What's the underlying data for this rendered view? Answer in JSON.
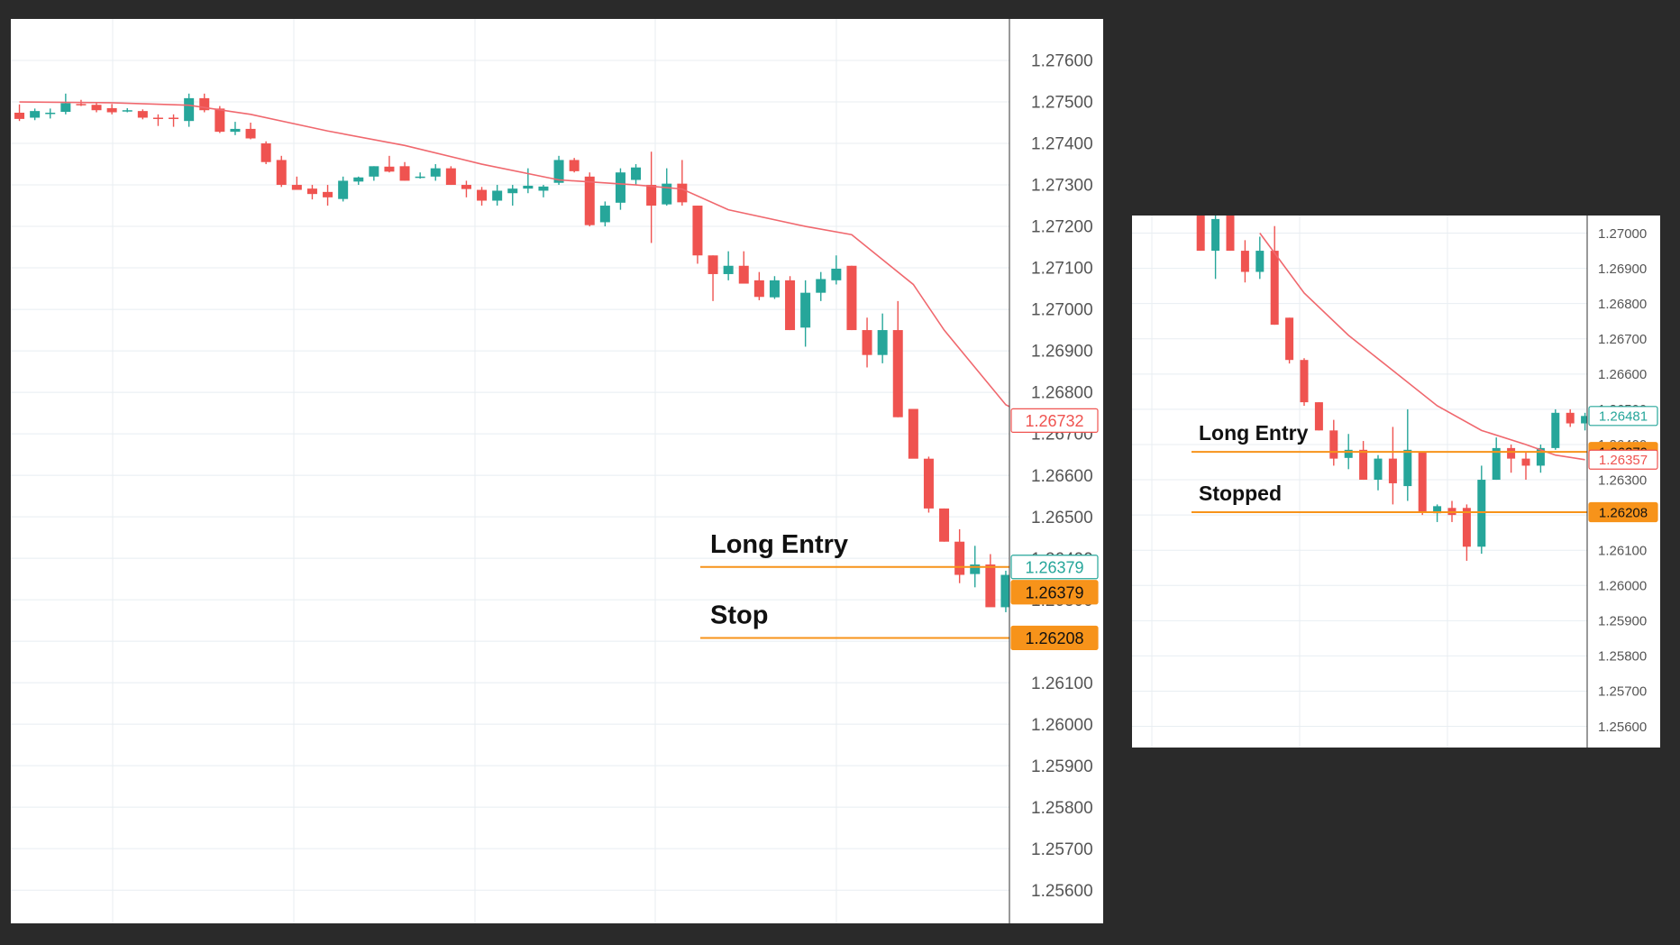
{
  "colors": {
    "bull": "#26a69a",
    "bear": "#ef5350",
    "ma": "#f0686e",
    "level": "#f7931a",
    "grid": "#e8eef2",
    "axis_text": "#555555",
    "panel_bg": "#ffffff",
    "page_bg": "#2a2a2a"
  },
  "chart_data": [
    {
      "type": "candlestick",
      "y_axis": {
        "ticks": [
          "1.27600",
          "1.27500",
          "1.27400",
          "1.27300",
          "1.27200",
          "1.27100",
          "1.27000",
          "1.26900",
          "1.26800",
          "1.26700",
          "1.26600",
          "1.26500",
          "1.26400",
          "1.26300",
          "1.26200",
          "1.26100",
          "1.26000",
          "1.25900",
          "1.25800",
          "1.25700",
          "1.25600"
        ],
        "ylim": [
          1.2552,
          1.277
        ]
      },
      "candles": [
        {
          "o": 1.27474,
          "h": 1.27494,
          "l": 1.27454,
          "c": 1.27459
        },
        {
          "o": 1.27462,
          "h": 1.27484,
          "l": 1.27456,
          "c": 1.27478
        },
        {
          "o": 1.27474,
          "h": 1.27484,
          "l": 1.2746,
          "c": 1.27474
        },
        {
          "o": 1.27476,
          "h": 1.2752,
          "l": 1.2747,
          "c": 1.27497
        },
        {
          "o": 1.27495,
          "h": 1.27505,
          "l": 1.2749,
          "c": 1.27493
        },
        {
          "o": 1.27493,
          "h": 1.275,
          "l": 1.27475,
          "c": 1.2748
        },
        {
          "o": 1.27485,
          "h": 1.27495,
          "l": 1.2747,
          "c": 1.27475
        },
        {
          "o": 1.2748,
          "h": 1.27485,
          "l": 1.27475,
          "c": 1.2748
        },
        {
          "o": 1.27478,
          "h": 1.27482,
          "l": 1.27458,
          "c": 1.27462
        },
        {
          "o": 1.27462,
          "h": 1.2747,
          "l": 1.27442,
          "c": 1.27461
        },
        {
          "o": 1.27462,
          "h": 1.2747,
          "l": 1.2744,
          "c": 1.27459
        },
        {
          "o": 1.27454,
          "h": 1.2752,
          "l": 1.2744,
          "c": 1.27509
        },
        {
          "o": 1.27509,
          "h": 1.2752,
          "l": 1.27475,
          "c": 1.2748
        },
        {
          "o": 1.27484,
          "h": 1.2749,
          "l": 1.27425,
          "c": 1.27428
        },
        {
          "o": 1.27428,
          "h": 1.27452,
          "l": 1.2742,
          "c": 1.27435
        },
        {
          "o": 1.27435,
          "h": 1.2745,
          "l": 1.2741,
          "c": 1.27412
        },
        {
          "o": 1.274,
          "h": 1.27405,
          "l": 1.2735,
          "c": 1.27355
        },
        {
          "o": 1.2736,
          "h": 1.2737,
          "l": 1.27295,
          "c": 1.273
        },
        {
          "o": 1.273,
          "h": 1.2732,
          "l": 1.2729,
          "c": 1.27288
        },
        {
          "o": 1.27291,
          "h": 1.273,
          "l": 1.27265,
          "c": 1.27278
        },
        {
          "o": 1.27283,
          "h": 1.273,
          "l": 1.2725,
          "c": 1.2727
        },
        {
          "o": 1.27266,
          "h": 1.2732,
          "l": 1.2726,
          "c": 1.2731
        },
        {
          "o": 1.27308,
          "h": 1.2732,
          "l": 1.273,
          "c": 1.27318
        },
        {
          "o": 1.2732,
          "h": 1.27345,
          "l": 1.2731,
          "c": 1.27345
        },
        {
          "o": 1.27344,
          "h": 1.2737,
          "l": 1.2733,
          "c": 1.27332
        },
        {
          "o": 1.27345,
          "h": 1.27355,
          "l": 1.2731,
          "c": 1.2731
        },
        {
          "o": 1.2732,
          "h": 1.2733,
          "l": 1.27315,
          "c": 1.2732
        },
        {
          "o": 1.2732,
          "h": 1.2735,
          "l": 1.2731,
          "c": 1.2734
        },
        {
          "o": 1.2734,
          "h": 1.27345,
          "l": 1.273,
          "c": 1.273
        },
        {
          "o": 1.273,
          "h": 1.2731,
          "l": 1.2727,
          "c": 1.2729
        },
        {
          "o": 1.27288,
          "h": 1.27295,
          "l": 1.2725,
          "c": 1.27262
        },
        {
          "o": 1.27262,
          "h": 1.273,
          "l": 1.2725,
          "c": 1.27286
        },
        {
          "o": 1.2728,
          "h": 1.273,
          "l": 1.2725,
          "c": 1.27291
        },
        {
          "o": 1.27291,
          "h": 1.2734,
          "l": 1.2728,
          "c": 1.27298
        },
        {
          "o": 1.27286,
          "h": 1.273,
          "l": 1.2727,
          "c": 1.27296
        },
        {
          "o": 1.27305,
          "h": 1.2737,
          "l": 1.273,
          "c": 1.2736
        },
        {
          "o": 1.2736,
          "h": 1.27365,
          "l": 1.2733,
          "c": 1.27333
        },
        {
          "o": 1.2732,
          "h": 1.2733,
          "l": 1.272,
          "c": 1.27203
        },
        {
          "o": 1.2721,
          "h": 1.2726,
          "l": 1.272,
          "c": 1.2725
        },
        {
          "o": 1.27257,
          "h": 1.2734,
          "l": 1.2724,
          "c": 1.2733
        },
        {
          "o": 1.27312,
          "h": 1.2735,
          "l": 1.273,
          "c": 1.27342
        },
        {
          "o": 1.273,
          "h": 1.2738,
          "l": 1.2716,
          "c": 1.2725
        },
        {
          "o": 1.27253,
          "h": 1.2734,
          "l": 1.2725,
          "c": 1.27303
        },
        {
          "o": 1.27303,
          "h": 1.2736,
          "l": 1.2725,
          "c": 1.27258
        },
        {
          "o": 1.2725,
          "h": 1.2725,
          "l": 1.2711,
          "c": 1.2713
        },
        {
          "o": 1.2713,
          "h": 1.2713,
          "l": 1.2702,
          "c": 1.27085
        },
        {
          "o": 1.27085,
          "h": 1.2714,
          "l": 1.2707,
          "c": 1.27105
        },
        {
          "o": 1.27105,
          "h": 1.2714,
          "l": 1.2707,
          "c": 1.27062
        },
        {
          "o": 1.2707,
          "h": 1.2709,
          "l": 1.27022,
          "c": 1.2703
        },
        {
          "o": 1.27029,
          "h": 1.2708,
          "l": 1.27025,
          "c": 1.2707
        },
        {
          "o": 1.2707,
          "h": 1.2708,
          "l": 1.2695,
          "c": 1.2695
        },
        {
          "o": 1.26956,
          "h": 1.2707,
          "l": 1.2691,
          "c": 1.2704
        },
        {
          "o": 1.2704,
          "h": 1.2709,
          "l": 1.2702,
          "c": 1.27073
        },
        {
          "o": 1.2707,
          "h": 1.2713,
          "l": 1.2706,
          "c": 1.27098
        },
        {
          "o": 1.27105,
          "h": 1.27105,
          "l": 1.2695,
          "c": 1.2695
        },
        {
          "o": 1.2695,
          "h": 1.2698,
          "l": 1.2686,
          "c": 1.2689
        },
        {
          "o": 1.2689,
          "h": 1.2699,
          "l": 1.2687,
          "c": 1.2695
        },
        {
          "o": 1.2695,
          "h": 1.2702,
          "l": 1.2674,
          "c": 1.2674
        },
        {
          "o": 1.2676,
          "h": 1.2676,
          "l": 1.2665,
          "c": 1.2664
        },
        {
          "o": 1.2664,
          "h": 1.26645,
          "l": 1.2651,
          "c": 1.2652
        },
        {
          "o": 1.2652,
          "h": 1.2652,
          "l": 1.2644,
          "c": 1.2644
        },
        {
          "o": 1.2644,
          "h": 1.2647,
          "l": 1.2634,
          "c": 1.2636
        },
        {
          "o": 1.26362,
          "h": 1.2643,
          "l": 1.2633,
          "c": 1.26385
        },
        {
          "o": 1.26385,
          "h": 1.2641,
          "l": 1.263,
          "c": 1.26282
        },
        {
          "o": 1.26282,
          "h": 1.2637,
          "l": 1.2627,
          "c": 1.2636
        },
        {
          "o": 1.2636,
          "h": 1.2645,
          "l": 1.2623,
          "c": 1.2626
        },
        {
          "o": 1.2626,
          "h": 1.265,
          "l": 1.2621,
          "c": 1.2636
        }
      ],
      "moving_average": [
        {
          "i": 0,
          "v": 1.275
        },
        {
          "i": 6,
          "v": 1.27498
        },
        {
          "i": 11,
          "v": 1.27492
        },
        {
          "i": 15,
          "v": 1.2747
        },
        {
          "i": 20,
          "v": 1.2743
        },
        {
          "i": 25,
          "v": 1.27395
        },
        {
          "i": 30,
          "v": 1.2735
        },
        {
          "i": 35,
          "v": 1.27312
        },
        {
          "i": 40,
          "v": 1.273
        },
        {
          "i": 43,
          "v": 1.2729
        },
        {
          "i": 46,
          "v": 1.2724
        },
        {
          "i": 51,
          "v": 1.272
        },
        {
          "i": 54,
          "v": 1.2718
        },
        {
          "i": 56,
          "v": 1.2712
        },
        {
          "i": 58,
          "v": 1.2706
        },
        {
          "i": 60,
          "v": 1.2695
        },
        {
          "i": 62,
          "v": 1.2686
        },
        {
          "i": 64,
          "v": 1.2677
        },
        {
          "i": 66,
          "v": 1.26732
        }
      ],
      "levels": [
        {
          "name": "Long Entry",
          "price": 1.26379,
          "label": "Long Entry"
        },
        {
          "name": "Stop",
          "price": 1.26208,
          "label": "Stop"
        }
      ],
      "price_tags": [
        {
          "text": "1.26732",
          "price": 1.26732,
          "style": "outline-ma"
        },
        {
          "text": "1.26379",
          "price": 1.26379,
          "style": "outline-bull"
        },
        {
          "text": "1.26379",
          "price": 1.26379,
          "style": "fill-level",
          "offset": "below"
        },
        {
          "text": "1.26208",
          "price": 1.26208,
          "style": "fill-level"
        }
      ]
    },
    {
      "type": "candlestick",
      "y_axis": {
        "ticks": [
          "1.27000",
          "1.26900",
          "1.26800",
          "1.26700",
          "1.26600",
          "1.26500",
          "1.26400",
          "1.26300",
          "1.26200",
          "1.26100",
          "1.26000",
          "1.25900",
          "1.25800",
          "1.25700",
          "1.25600"
        ],
        "ylim": [
          1.2554,
          1.2705
        ]
      },
      "candles": [
        {
          "o": 1.2707,
          "h": 1.2708,
          "l": 1.2695,
          "c": 1.2695
        },
        {
          "o": 1.2695,
          "h": 1.2708,
          "l": 1.2687,
          "c": 1.2704
        },
        {
          "o": 1.2709,
          "h": 1.27105,
          "l": 1.2695,
          "c": 1.2695
        },
        {
          "o": 1.2695,
          "h": 1.2698,
          "l": 1.2686,
          "c": 1.2689
        },
        {
          "o": 1.2689,
          "h": 1.2699,
          "l": 1.2687,
          "c": 1.2695
        },
        {
          "o": 1.2695,
          "h": 1.2702,
          "l": 1.2674,
          "c": 1.2674
        },
        {
          "o": 1.2676,
          "h": 1.2676,
          "l": 1.2663,
          "c": 1.2664
        },
        {
          "o": 1.2664,
          "h": 1.26645,
          "l": 1.2651,
          "c": 1.2652
        },
        {
          "o": 1.2652,
          "h": 1.2652,
          "l": 1.2644,
          "c": 1.2644
        },
        {
          "o": 1.2644,
          "h": 1.2647,
          "l": 1.2634,
          "c": 1.2636
        },
        {
          "o": 1.26362,
          "h": 1.2643,
          "l": 1.2633,
          "c": 1.26385
        },
        {
          "o": 1.26385,
          "h": 1.2641,
          "l": 1.263,
          "c": 1.263
        },
        {
          "o": 1.263,
          "h": 1.2637,
          "l": 1.2627,
          "c": 1.2636
        },
        {
          "o": 1.2636,
          "h": 1.2645,
          "l": 1.2623,
          "c": 1.2629
        },
        {
          "o": 1.26282,
          "h": 1.265,
          "l": 1.2624,
          "c": 1.26385
        },
        {
          "o": 1.2638,
          "h": 1.2638,
          "l": 1.262,
          "c": 1.2621
        },
        {
          "o": 1.26205,
          "h": 1.2623,
          "l": 1.2618,
          "c": 1.26225
        },
        {
          "o": 1.2622,
          "h": 1.2624,
          "l": 1.2618,
          "c": 1.262
        },
        {
          "o": 1.2622,
          "h": 1.2623,
          "l": 1.2607,
          "c": 1.2611
        },
        {
          "o": 1.2611,
          "h": 1.2634,
          "l": 1.2609,
          "c": 1.263
        },
        {
          "o": 1.263,
          "h": 1.2642,
          "l": 1.263,
          "c": 1.2639
        },
        {
          "o": 1.2639,
          "h": 1.264,
          "l": 1.2632,
          "c": 1.2636
        },
        {
          "o": 1.2636,
          "h": 1.2638,
          "l": 1.263,
          "c": 1.2634
        },
        {
          "o": 1.2634,
          "h": 1.264,
          "l": 1.2632,
          "c": 1.2639
        },
        {
          "o": 1.2639,
          "h": 1.265,
          "l": 1.26385,
          "c": 1.2649
        },
        {
          "o": 1.2649,
          "h": 1.265,
          "l": 1.2645,
          "c": 1.2646
        },
        {
          "o": 1.2646,
          "h": 1.2649,
          "l": 1.2644,
          "c": 1.26481
        }
      ],
      "moving_average": [
        {
          "i": 4,
          "v": 1.27
        },
        {
          "i": 7,
          "v": 1.2683
        },
        {
          "i": 10,
          "v": 1.2671
        },
        {
          "i": 13,
          "v": 1.2661
        },
        {
          "i": 16,
          "v": 1.2651
        },
        {
          "i": 19,
          "v": 1.2644
        },
        {
          "i": 22,
          "v": 1.264
        },
        {
          "i": 24,
          "v": 1.2637
        },
        {
          "i": 26,
          "v": 1.26357
        }
      ],
      "levels": [
        {
          "name": "Long Entry",
          "price": 1.26379,
          "label": "Long Entry"
        },
        {
          "name": "Stopped",
          "price": 1.26208,
          "label": "Stopped"
        }
      ],
      "price_tags": [
        {
          "text": "1.26481",
          "price": 1.26481,
          "style": "outline-bull"
        },
        {
          "text": "1.26379",
          "price": 1.26379,
          "style": "fill-level"
        },
        {
          "text": "1.26357",
          "price": 1.26357,
          "style": "outline-ma"
        },
        {
          "text": "1.26208",
          "price": 1.26208,
          "style": "fill-level"
        }
      ]
    }
  ]
}
